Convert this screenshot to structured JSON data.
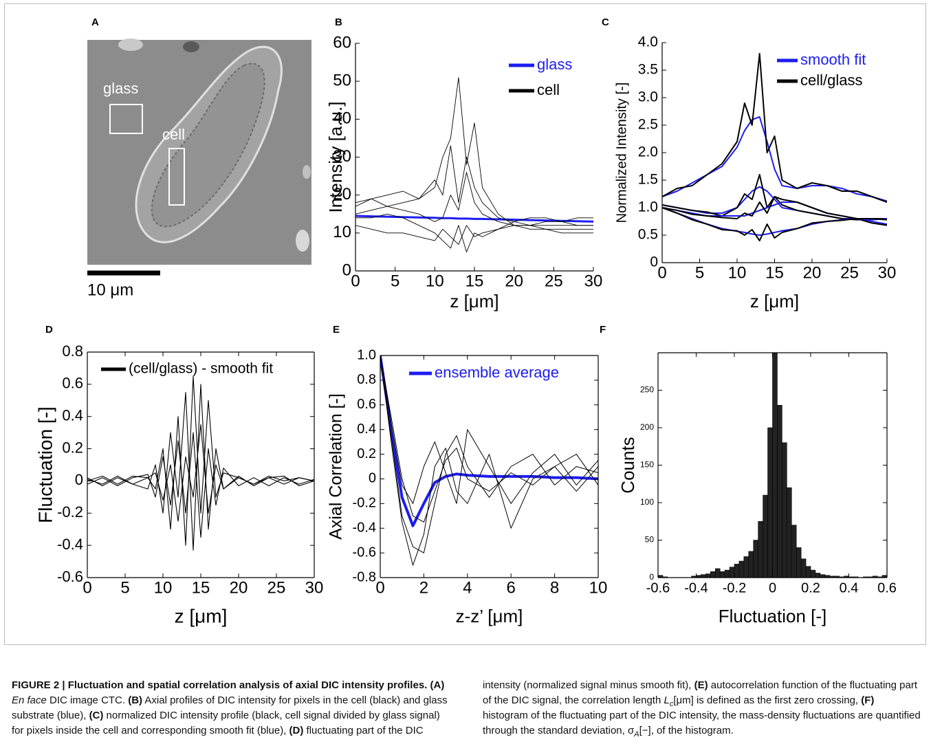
{
  "image_panel": {
    "label": "A",
    "region_labels": [
      "glass",
      "cell"
    ],
    "scale_bar": "10 μm"
  },
  "chart_data": [
    {
      "type": "line",
      "label": "B",
      "xlabel": "z [μm]",
      "ylabel": "Intensity [a.u.]",
      "x": [
        0,
        2,
        4,
        6,
        8,
        10,
        11,
        12,
        13,
        14,
        15,
        16,
        18,
        20,
        22,
        24,
        26,
        28,
        30
      ],
      "xlim": [
        0,
        30
      ],
      "xticks": [
        0,
        5,
        10,
        15,
        20,
        25,
        30
      ],
      "ylim": [
        0,
        60
      ],
      "yticks": [
        0,
        10,
        20,
        30,
        40,
        50,
        60
      ],
      "series": [
        {
          "name": "glass",
          "color": "#1c1cf0",
          "values": [
            14.5,
            14.4,
            14.3,
            14.2,
            14.1,
            14.0,
            13.9,
            13.9,
            13.8,
            13.8,
            13.7,
            13.7,
            13.6,
            13.5,
            13.4,
            13.3,
            13.2,
            13.1,
            13.0
          ]
        },
        {
          "name": "cell",
          "color": "#000000",
          "values": [
            15,
            16,
            17,
            18,
            19,
            22,
            30,
            35,
            51,
            28,
            39,
            22,
            15,
            12,
            11,
            11,
            10,
            10,
            10
          ]
        },
        {
          "color": "#000000",
          "values": [
            17,
            19,
            20,
            21,
            19,
            24,
            20,
            33,
            18,
            30,
            22,
            18,
            14,
            13,
            12,
            12,
            12,
            12,
            12
          ]
        },
        {
          "color": "#000000",
          "values": [
            14,
            14,
            15,
            14,
            12,
            10,
            8,
            6,
            12,
            5,
            10,
            9,
            11,
            12,
            12,
            13,
            13,
            14,
            14
          ]
        },
        {
          "color": "#000000",
          "values": [
            18,
            19,
            17,
            16,
            15,
            13,
            14,
            20,
            16,
            26,
            18,
            15,
            13,
            12,
            12,
            11,
            11,
            11,
            11
          ]
        },
        {
          "color": "#000000",
          "values": [
            12,
            11,
            10,
            10,
            9,
            8,
            11,
            9,
            7,
            12,
            9,
            10,
            11,
            13,
            14,
            14,
            13,
            12,
            12
          ]
        }
      ]
    },
    {
      "type": "line",
      "label": "C",
      "xlabel": "z [μm]",
      "ylabel": "Normalized Intensity [-]",
      "x": [
        0,
        2,
        4,
        6,
        8,
        10,
        11,
        12,
        13,
        14,
        15,
        16,
        18,
        20,
        22,
        24,
        26,
        28,
        30
      ],
      "xlim": [
        0,
        30
      ],
      "xticks": [
        0,
        5,
        10,
        15,
        20,
        25,
        30
      ],
      "ylim": [
        0,
        4
      ],
      "yticks": [
        0,
        0.5,
        {
          "value": 1,
          "label": "1.0"
        },
        1.5,
        {
          "value": 2,
          "label": "2.0"
        },
        2.5,
        {
          "value": 3,
          "label": "3.0"
        },
        3.5,
        {
          "value": 4,
          "label": "4.0"
        }
      ],
      "series": [
        {
          "name": "smooth fit",
          "color": "#1c1cf0",
          "values": [
            1.2,
            1.3,
            1.45,
            1.6,
            1.75,
            2.1,
            2.4,
            2.6,
            2.65,
            2.2,
            1.7,
            1.4,
            1.35,
            1.4,
            1.4,
            1.35,
            1.25,
            1.2,
            1.12
          ]
        },
        {
          "name": "cell/glass",
          "color": "#000000",
          "values": [
            1.2,
            1.35,
            1.4,
            1.6,
            1.8,
            2.2,
            2.9,
            2.5,
            3.8,
            2.0,
            2.3,
            1.5,
            1.35,
            1.45,
            1.4,
            1.3,
            1.3,
            1.2,
            1.1
          ]
        },
        {
          "color": "#1c1cf0",
          "values": [
            1.05,
            1.0,
            0.95,
            0.9,
            0.9,
            1.0,
            1.15,
            1.3,
            1.38,
            1.3,
            1.15,
            1.0,
            0.95,
            0.9,
            0.85,
            0.8,
            0.8,
            0.8,
            0.8
          ]
        },
        {
          "color": "#000000",
          "values": [
            1.05,
            1.0,
            0.95,
            0.92,
            0.85,
            1.0,
            1.25,
            1.15,
            1.6,
            1.0,
            1.2,
            1.05,
            0.95,
            0.9,
            0.85,
            0.8,
            0.78,
            0.8,
            0.8
          ]
        },
        {
          "color": "#1c1cf0",
          "values": [
            1.0,
            0.95,
            0.9,
            0.85,
            0.85,
            0.85,
            0.85,
            0.9,
            0.95,
            1.0,
            1.05,
            1.1,
            1.1,
            1.0,
            0.9,
            0.85,
            0.8,
            0.75,
            0.7
          ]
        },
        {
          "color": "#000000",
          "values": [
            1.0,
            0.95,
            0.88,
            0.85,
            0.82,
            0.8,
            0.9,
            0.85,
            1.1,
            0.9,
            1.2,
            1.15,
            1.1,
            1.0,
            0.9,
            0.85,
            0.8,
            0.72,
            0.68
          ]
        },
        {
          "color": "#1c1cf0",
          "values": [
            1.0,
            0.9,
            0.8,
            0.7,
            0.62,
            0.57,
            0.55,
            0.52,
            0.5,
            0.52,
            0.55,
            0.58,
            0.62,
            0.7,
            0.75,
            0.78,
            0.8,
            0.78,
            0.8
          ]
        },
        {
          "color": "#000000",
          "values": [
            1.0,
            0.9,
            0.78,
            0.7,
            0.6,
            0.58,
            0.5,
            0.6,
            0.4,
            0.7,
            0.45,
            0.55,
            0.62,
            0.72,
            0.75,
            0.77,
            0.8,
            0.8,
            0.78
          ]
        }
      ]
    },
    {
      "type": "line",
      "label": "D",
      "xlabel": "z [μm]",
      "ylabel": "Fluctuation [-]",
      "x": [
        0,
        2,
        4,
        6,
        8,
        9,
        10,
        11,
        12,
        13,
        14,
        15,
        16,
        17,
        18,
        20,
        22,
        24,
        26,
        28,
        30
      ],
      "xlim": [
        0,
        30
      ],
      "xticks": [
        0,
        5,
        10,
        15,
        20,
        25,
        30
      ],
      "ylim": [
        -0.6,
        0.8
      ],
      "yticks": [
        -0.6,
        -0.4,
        -0.2,
        0,
        0.2,
        0.4,
        0.6,
        0.8
      ],
      "series": [
        {
          "name": "(cell/glass) - smooth fit",
          "color": "#000000",
          "values": [
            0,
            0.03,
            -0.02,
            0.03,
            0.02,
            -0.05,
            0.2,
            -0.3,
            0.4,
            -0.4,
            0.65,
            -0.2,
            0.5,
            -0.1,
            0.05,
            0.02,
            -0.02,
            0.03,
            0,
            0.02,
            0
          ]
        },
        {
          "color": "#000000",
          "values": [
            0.02,
            -0.03,
            0.02,
            -0.02,
            -0.05,
            0.1,
            -0.2,
            0.3,
            -0.1,
            0.55,
            -0.43,
            0.6,
            -0.3,
            0.2,
            -0.05,
            0.03,
            -0.03,
            0.02,
            -0.02,
            0.02,
            0
          ]
        },
        {
          "color": "#000000",
          "values": [
            -0.02,
            0.02,
            -0.03,
            0.02,
            0.04,
            -0.1,
            0.15,
            -0.15,
            0.25,
            -0.2,
            0.3,
            -0.35,
            0.2,
            -0.15,
            0.08,
            -0.03,
            0.02,
            -0.03,
            0.02,
            -0.02,
            0.01
          ]
        },
        {
          "color": "#000000",
          "values": [
            0.01,
            -0.02,
            0.03,
            -0.02,
            0.02,
            0.05,
            -0.12,
            0.1,
            -0.25,
            0.15,
            -0.1,
            0.35,
            -0.2,
            0.1,
            -0.05,
            0.02,
            -0.02,
            0.02,
            0.03,
            -0.03,
            0
          ]
        }
      ]
    },
    {
      "type": "line",
      "label": "E",
      "xlabel": "z-z’ [μm]",
      "ylabel": "Axial Correlation [-]",
      "x": [
        0,
        0.5,
        1,
        1.5,
        2,
        2.5,
        3,
        3.5,
        4,
        5,
        6,
        7,
        8,
        9,
        10
      ],
      "xlim": [
        0,
        10
      ],
      "xticks": [
        0,
        2,
        4,
        6,
        8,
        10
      ],
      "ylim": [
        -0.8,
        1
      ],
      "yticks": [
        -0.8,
        -0.6,
        -0.4,
        -0.2,
        0,
        0.2,
        0.4,
        0.6,
        0.8,
        {
          "value": 1,
          "label": "1.0"
        }
      ],
      "series": [
        {
          "name": "ensemble average",
          "color": "#1c1cf0",
          "values": [
            1.0,
            0.4,
            -0.15,
            -0.38,
            -0.2,
            -0.03,
            0.02,
            0.04,
            0.03,
            0.02,
            0.02,
            0.02,
            0.01,
            0.01,
            0
          ]
        },
        {
          "color": "#000000",
          "values": [
            1.0,
            0.35,
            -0.3,
            -0.55,
            -0.6,
            -0.2,
            0.2,
            0.35,
            0.1,
            -0.15,
            0.1,
            0.2,
            -0.05,
            0.1,
            0.05
          ]
        },
        {
          "color": "#000000",
          "values": [
            1.0,
            0.45,
            -0.05,
            -0.2,
            0.1,
            0.3,
            0.05,
            -0.2,
            0.4,
            0.1,
            -0.2,
            0.05,
            0.2,
            -0.05,
            0.15
          ]
        },
        {
          "color": "#000000",
          "values": [
            1.0,
            0.3,
            -0.35,
            -0.7,
            -0.45,
            0.1,
            0.25,
            -0.1,
            -0.2,
            0.2,
            -0.4,
            0,
            0.1,
            0.2,
            -0.05
          ]
        },
        {
          "color": "#000000",
          "values": [
            1.0,
            0.5,
            0,
            -0.3,
            -0.35,
            -0.1,
            0.15,
            0.25,
            0,
            -0.1,
            0.05,
            -0.05,
            0.1,
            -0.1,
            0.1
          ]
        }
      ]
    },
    {
      "type": "histogram",
      "label": "F",
      "xlabel": "Fluctuation [-]",
      "ylabel": "Counts",
      "color": "#222222",
      "bins": [
        -0.6,
        -0.575,
        -0.55,
        -0.525,
        -0.5,
        -0.475,
        -0.45,
        -0.425,
        -0.4,
        -0.375,
        -0.35,
        -0.325,
        -0.3,
        -0.275,
        -0.25,
        -0.225,
        -0.2,
        -0.175,
        -0.15,
        -0.125,
        -0.1,
        -0.075,
        -0.05,
        -0.025,
        0,
        0.025,
        0.05,
        0.075,
        0.1,
        0.125,
        0.15,
        0.175,
        0.2,
        0.225,
        0.25,
        0.275,
        0.3,
        0.325,
        0.35,
        0.375,
        0.4,
        0.425,
        0.45,
        0.475,
        0.5,
        0.525,
        0.55,
        0.575,
        0.6
      ],
      "counts": [
        3,
        1,
        0,
        0,
        0,
        0,
        0,
        2,
        3,
        4,
        5,
        8,
        12,
        8,
        10,
        14,
        18,
        22,
        28,
        35,
        50,
        75,
        110,
        200,
        300,
        230,
        180,
        120,
        70,
        40,
        25,
        15,
        10,
        6,
        4,
        3,
        2,
        2,
        1,
        2,
        1,
        1,
        0,
        1,
        1,
        2,
        1,
        3
      ],
      "xlim": [
        -0.6,
        0.6
      ],
      "xticks": [
        -0.6,
        -0.4,
        -0.2,
        0,
        0.2,
        0.4,
        0.6
      ],
      "ylim": [
        0,
        300
      ],
      "yticks": [
        0,
        50,
        100,
        150,
        200,
        250
      ]
    }
  ],
  "caption": [
    {
      "style": "bold",
      "text": "FIGURE 2 | Fluctuation and spatial correlation analysis of axial DIC intensity profiles. (A) "
    },
    {
      "style": "italic",
      "text": "En face"
    },
    {
      "style": "normal",
      "text": " DIC image CTC. "
    },
    {
      "style": "bold",
      "text": "(B)"
    },
    {
      "style": "normal",
      "text": " Axial profiles of DIC intensity for pixels in the cell (black) and glass substrate (blue), "
    },
    {
      "style": "bold",
      "text": "(C)"
    },
    {
      "style": "normal",
      "text": " normalized DIC intensity profile (black, cell signal divided by glass signal) for pixels inside the cell and corresponding smooth fit (blue), "
    },
    {
      "style": "bold",
      "text": "(D)"
    },
    {
      "style": "normal",
      "text": " fluctuating part of the DIC intensity (normalized signal minus smooth fit), "
    },
    {
      "style": "bold",
      "text": "(E)"
    },
    {
      "style": "normal",
      "text": " autocorrelation function of the fluctuating part of the DIC signal, the correlation length "
    },
    {
      "style": "italic",
      "text": "L"
    },
    {
      "style": "sub",
      "text": "c"
    },
    {
      "style": "normal",
      "text": "[μm] is defined as the first zero crossing, "
    },
    {
      "style": "bold",
      "text": "(F)"
    },
    {
      "style": "normal",
      "text": " histogram of the fluctuating part of the DIC intensity, the mass-density fluctuations are quantified through the standard deviation, σ"
    },
    {
      "style": "sub",
      "text": "A"
    },
    {
      "style": "normal",
      "text": "[−], of the histogram."
    }
  ]
}
